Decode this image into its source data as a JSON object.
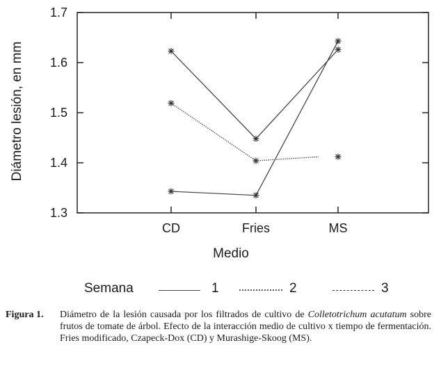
{
  "chart_data": {
    "type": "line",
    "title": "",
    "xlabel": "Medio",
    "ylabel": "Diámetro lesión, en mm",
    "categories": [
      "CD",
      "Fries",
      "MS"
    ],
    "ylim": [
      1.3,
      1.7
    ],
    "yticks": [
      "1.3",
      "1.4",
      "1.5",
      "1.6",
      "1.7"
    ],
    "grid": false,
    "legend_title": "Semana",
    "legend_position": "bottom",
    "series": [
      {
        "name": "1",
        "values": [
          1.623,
          1.448,
          1.626
        ],
        "style": "solid"
      },
      {
        "name": "2",
        "values": [
          1.519,
          1.404,
          1.412
        ],
        "style": "dotted"
      },
      {
        "name": "3",
        "values": [
          1.343,
          1.335,
          1.643
        ],
        "style": "dashed"
      }
    ]
  },
  "caption": {
    "label": "Figura 1.",
    "text_before": "Diámetro de la lesión causada por los filtrados de cultivo de ",
    "species": "Colletotrichum acutatum",
    "text_after": " sobre frutos de tomate de árbol.  Efecto de la interacción medio de cultivo x tiempo de fermentación. Fries modificado, Czapeck-Dox (CD) y Murashige-Skoog (MS)."
  }
}
